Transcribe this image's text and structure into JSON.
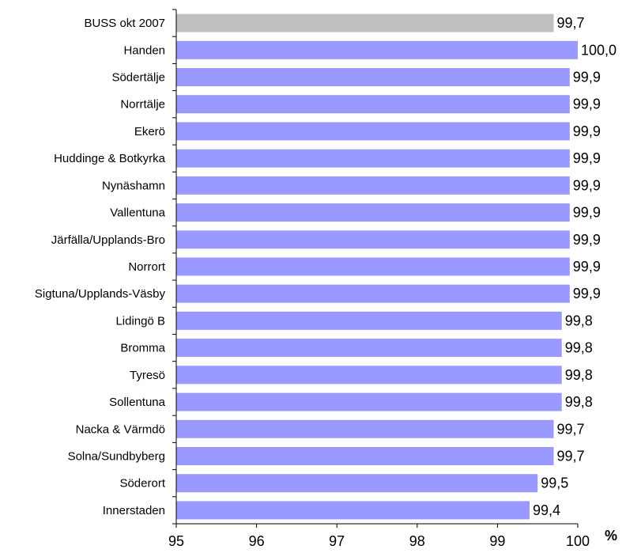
{
  "chart_data": {
    "type": "bar",
    "orientation": "horizontal",
    "categories": [
      "BUSS okt 2007",
      "Handen",
      "Södertälje",
      "Norrtälje",
      "Ekerö",
      "Huddinge & Botkyrka",
      "Nynäshamn",
      "Vallentuna",
      "Järfälla/Upplands-Bro",
      "Norrort",
      "Sigtuna/Upplands-Väsby",
      "Lidingö B",
      "Bromma",
      "Tyresö",
      "Sollentuna",
      "Nacka & Värmdö",
      "Solna/Sundbyberg",
      "Söderort",
      "Innerstaden"
    ],
    "values": [
      99.7,
      100.0,
      99.9,
      99.9,
      99.9,
      99.9,
      99.9,
      99.9,
      99.9,
      99.9,
      99.9,
      99.8,
      99.8,
      99.8,
      99.8,
      99.7,
      99.7,
      99.5,
      99.4
    ],
    "value_labels": [
      "99,7",
      "100,0",
      "99,9",
      "99,9",
      "99,9",
      "99,9",
      "99,9",
      "99,9",
      "99,9",
      "99,9",
      "99,9",
      "99,8",
      "99,8",
      "99,8",
      "99,8",
      "99,7",
      "99,7",
      "99,5",
      "99,4"
    ],
    "bar_colors": [
      "#c0c0c0",
      "#9999ff",
      "#9999ff",
      "#9999ff",
      "#9999ff",
      "#9999ff",
      "#9999ff",
      "#9999ff",
      "#9999ff",
      "#9999ff",
      "#9999ff",
      "#9999ff",
      "#9999ff",
      "#9999ff",
      "#9999ff",
      "#9999ff",
      "#9999ff",
      "#9999ff",
      "#9999ff"
    ],
    "xlim": [
      95,
      100
    ],
    "xticks": [
      95,
      96,
      97,
      98,
      99,
      100
    ],
    "unit_label": "%",
    "grid": false,
    "legend": "none"
  }
}
